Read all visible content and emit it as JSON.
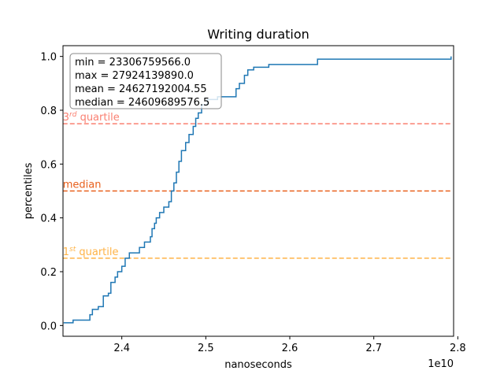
{
  "chart_data": {
    "type": "line",
    "title": "Writing duration",
    "xlabel": "nanoseconds",
    "ylabel": "percentiles",
    "x_offset_label": "1e10",
    "xlim": [
      23300000000.0,
      27950000000.0
    ],
    "ylim": [
      -0.04,
      1.04
    ],
    "x_ticks": [
      24000000000.0,
      25000000000.0,
      26000000000.0,
      27000000000.0,
      28000000000.0
    ],
    "x_tick_labels": [
      "2.4",
      "2.5",
      "2.6",
      "2.7",
      "2.8"
    ],
    "y_ticks": [
      0.0,
      0.2,
      0.4,
      0.6,
      0.8,
      1.0
    ],
    "y_tick_labels": [
      "0.0",
      "0.2",
      "0.4",
      "0.6",
      "0.8",
      "1.0"
    ],
    "grid": false,
    "stats_box": {
      "lines": [
        "min = 23306759566.0",
        "max = 27924139890.0",
        "mean = 24627192004.55",
        "median = 24609689576.5"
      ]
    },
    "reference_lines": [
      {
        "key": "q3",
        "y": 0.75,
        "label_base": "3",
        "label_sup": "rd",
        "label_rest": " quartile",
        "color": "#fa8072"
      },
      {
        "key": "median",
        "y": 0.5,
        "label_base": "median",
        "label_sup": "",
        "label_rest": "",
        "color": "#e8601c"
      },
      {
        "key": "q1",
        "y": 0.25,
        "label_base": "1",
        "label_sup": "st",
        "label_rest": " quartile",
        "color": "#ffb347"
      }
    ],
    "series": [
      {
        "color": "#1f77b4",
        "steps": [
          [
            23307000000.0,
            0.01
          ],
          [
            23420000000.0,
            0.02
          ],
          [
            23620000000.0,
            0.04
          ],
          [
            23650000000.0,
            0.06
          ],
          [
            23720000000.0,
            0.07
          ],
          [
            23780000000.0,
            0.11
          ],
          [
            23840000000.0,
            0.12
          ],
          [
            23870000000.0,
            0.16
          ],
          [
            23920000000.0,
            0.18
          ],
          [
            23950000000.0,
            0.2
          ],
          [
            24000000000.0,
            0.22
          ],
          [
            24040000000.0,
            0.25
          ],
          [
            24090000000.0,
            0.27
          ],
          [
            24210000000.0,
            0.29
          ],
          [
            24270000000.0,
            0.31
          ],
          [
            24340000000.0,
            0.33
          ],
          [
            24360000000.0,
            0.36
          ],
          [
            24390000000.0,
            0.38
          ],
          [
            24410000000.0,
            0.4
          ],
          [
            24450000000.0,
            0.42
          ],
          [
            24500000000.0,
            0.44
          ],
          [
            24560000000.0,
            0.46
          ],
          [
            24590000000.0,
            0.5
          ],
          [
            24620000000.0,
            0.53
          ],
          [
            24650000000.0,
            0.57
          ],
          [
            24680000000.0,
            0.61
          ],
          [
            24710000000.0,
            0.65
          ],
          [
            24760000000.0,
            0.68
          ],
          [
            24800000000.0,
            0.71
          ],
          [
            24850000000.0,
            0.74
          ],
          [
            24880000000.0,
            0.77
          ],
          [
            24910000000.0,
            0.79
          ],
          [
            24950000000.0,
            0.82
          ],
          [
            25020000000.0,
            0.84
          ],
          [
            25140000000.0,
            0.85
          ],
          [
            25360000000.0,
            0.88
          ],
          [
            25400000000.0,
            0.9
          ],
          [
            25460000000.0,
            0.93
          ],
          [
            25500000000.0,
            0.95
          ],
          [
            25570000000.0,
            0.96
          ],
          [
            25750000000.0,
            0.97
          ],
          [
            26330000000.0,
            0.99
          ],
          [
            27920000000.0,
            1.0
          ]
        ]
      }
    ]
  }
}
